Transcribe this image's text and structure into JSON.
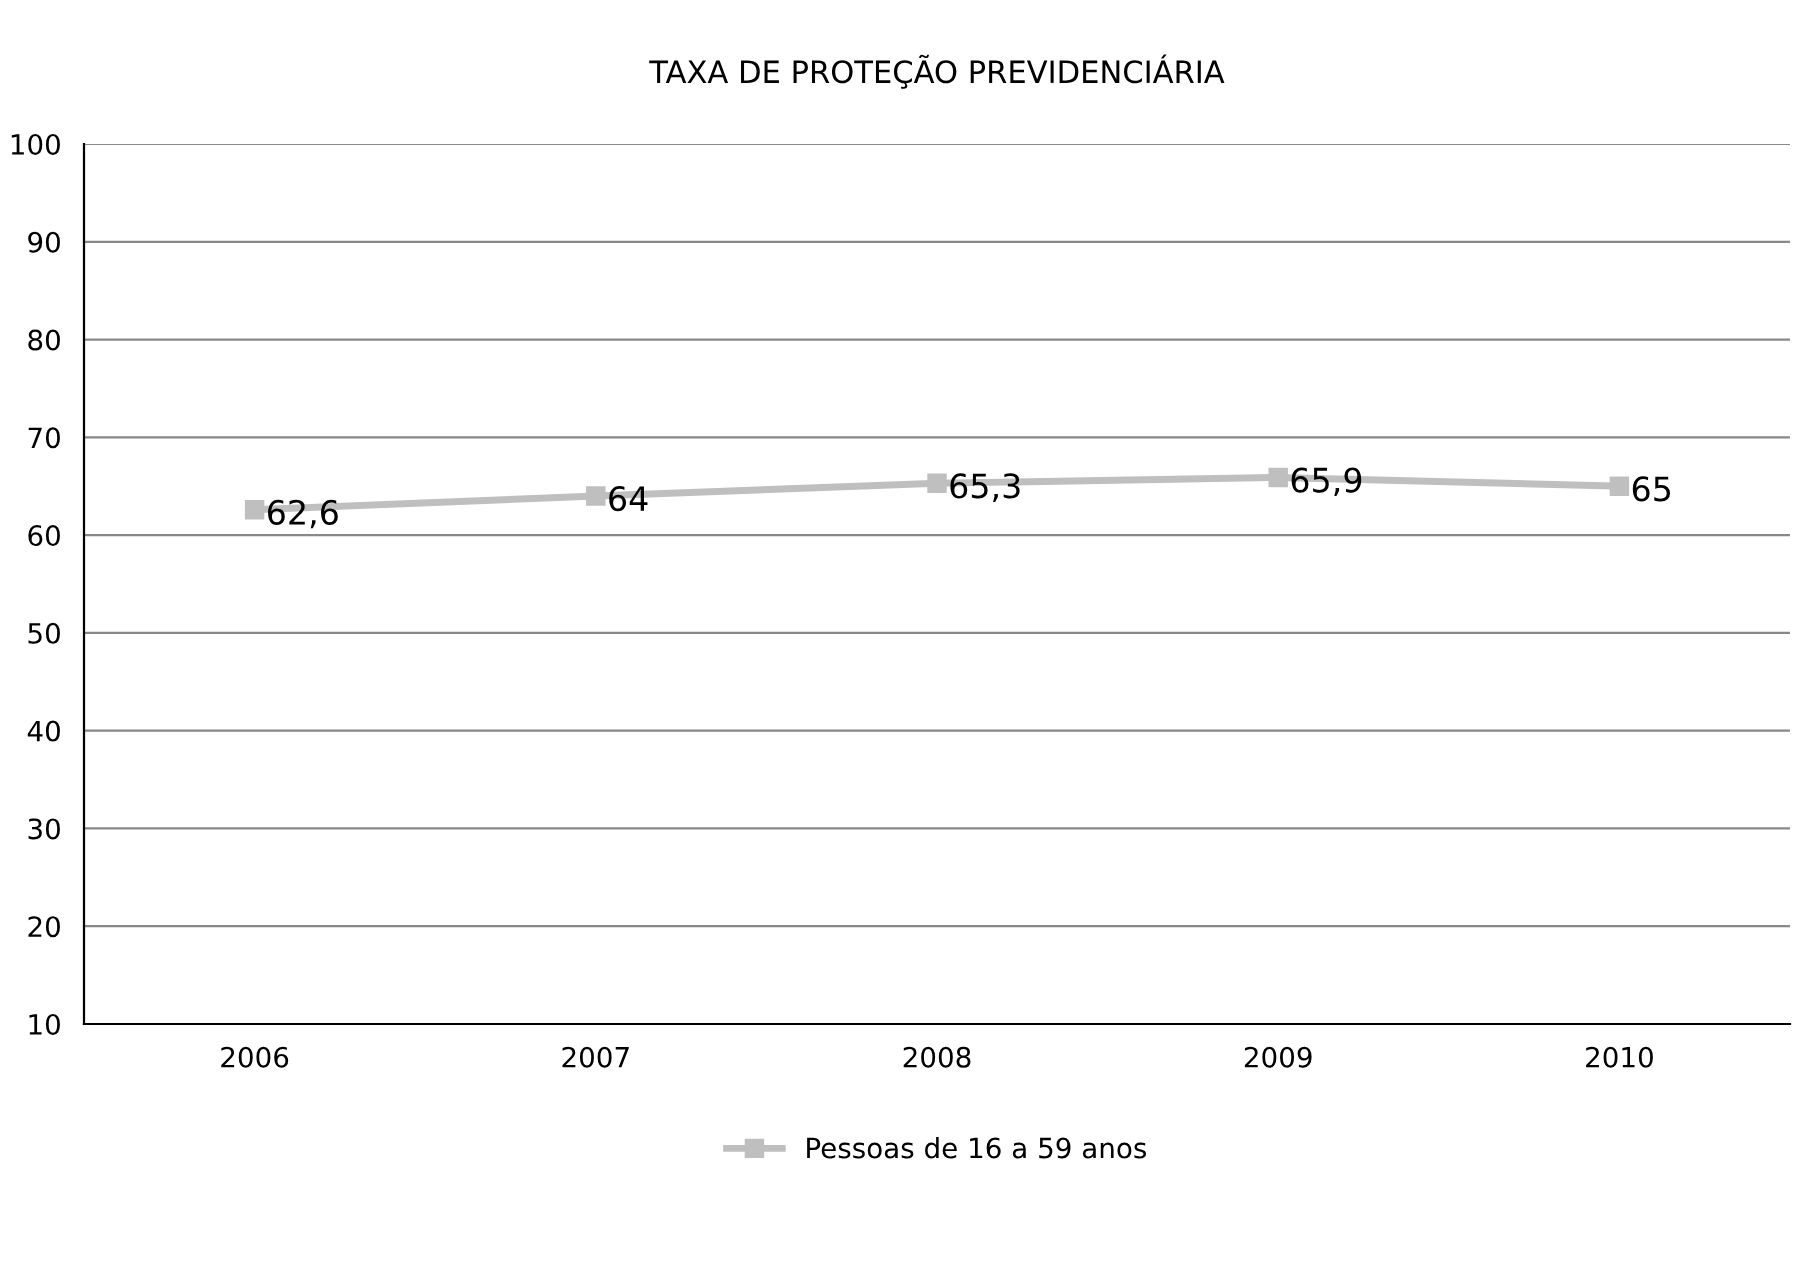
{
  "chart_data": {
    "type": "line",
    "title": "TAXA DE PROTEÇÃO PREVIDENCIÁRIA",
    "categories": [
      "2006",
      "2007",
      "2008",
      "2009",
      "2010"
    ],
    "series": [
      {
        "name": "Pessoas de 16 a 59 anos",
        "color": "#bfbfbf",
        "values": [
          62.6,
          64,
          65.3,
          65.9,
          65
        ],
        "value_labels": [
          "62,6",
          "64",
          "65,3",
          "65,9",
          "65"
        ]
      }
    ],
    "ylim": [
      10,
      100
    ],
    "yticks": [
      10,
      20,
      30,
      40,
      50,
      60,
      70,
      80,
      90,
      100
    ],
    "grid": "y",
    "legend": "bottom",
    "marker": "square",
    "line_style": "solid"
  }
}
